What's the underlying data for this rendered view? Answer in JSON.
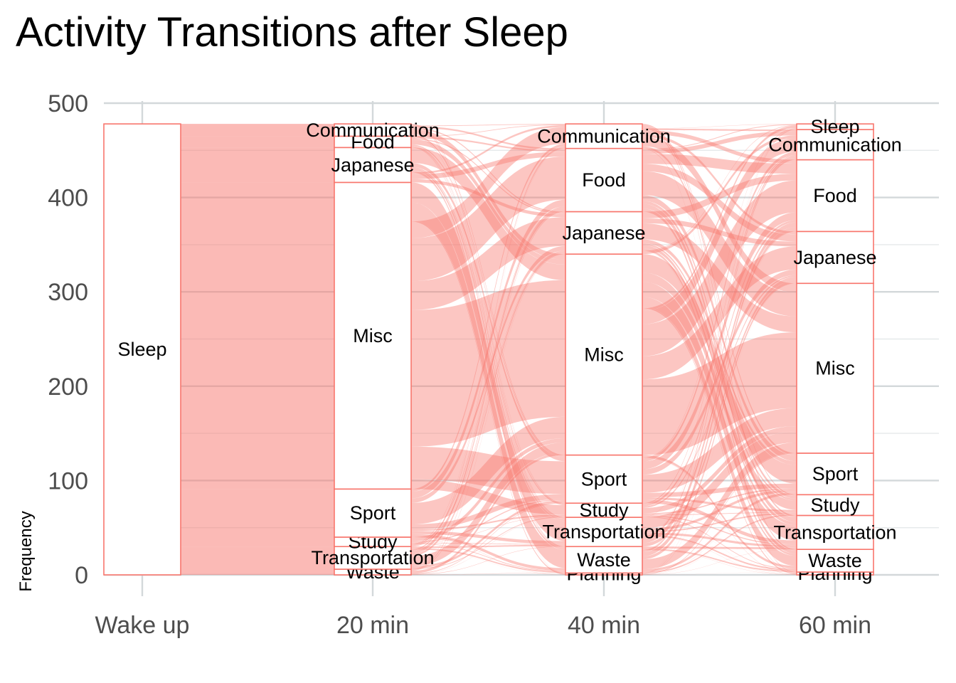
{
  "chart_data": {
    "type": "alluvial",
    "title": "Activity Transitions after Sleep",
    "xlabel": "",
    "ylabel": "Frequency",
    "ylim": [
      0,
      500
    ],
    "yticks": [
      0,
      100,
      200,
      300,
      400,
      500
    ],
    "grid": true,
    "legend": "none",
    "fill_color": "#F8766D",
    "stratum_border_color": "#F8766D",
    "axes": [
      {
        "label": "Wake up",
        "strata": [
          {
            "name": "Sleep",
            "value": 478
          }
        ]
      },
      {
        "label": "20 min",
        "strata": [
          {
            "name": "Waste",
            "value": 6
          },
          {
            "name": "Transportation",
            "value": 24
          },
          {
            "name": "Study",
            "value": 10
          },
          {
            "name": "Sport",
            "value": 51
          },
          {
            "name": "Misc",
            "value": 325
          },
          {
            "name": "Japanese",
            "value": 37
          },
          {
            "name": "Food",
            "value": 12
          },
          {
            "name": "Communication",
            "value": 13
          }
        ]
      },
      {
        "label": "40 min",
        "strata": [
          {
            "name": "Planning",
            "value": 2
          },
          {
            "name": "Waste",
            "value": 28
          },
          {
            "name": "Transportation",
            "value": 31
          },
          {
            "name": "Study",
            "value": 15
          },
          {
            "name": "Sport",
            "value": 51
          },
          {
            "name": "Misc",
            "value": 213
          },
          {
            "name": "Japanese",
            "value": 45
          },
          {
            "name": "Food",
            "value": 67
          },
          {
            "name": "Communication",
            "value": 26
          }
        ]
      },
      {
        "label": "60 min",
        "strata": [
          {
            "name": "Planning",
            "value": 3
          },
          {
            "name": "Waste",
            "value": 24
          },
          {
            "name": "Transportation",
            "value": 36
          },
          {
            "name": "Study",
            "value": 22
          },
          {
            "name": "Sport",
            "value": 44
          },
          {
            "name": "Misc",
            "value": 180
          },
          {
            "name": "Japanese",
            "value": 55
          },
          {
            "name": "Food",
            "value": 76
          },
          {
            "name": "Communication",
            "value": 32
          },
          {
            "name": "Sleep",
            "value": 6
          }
        ]
      }
    ]
  }
}
